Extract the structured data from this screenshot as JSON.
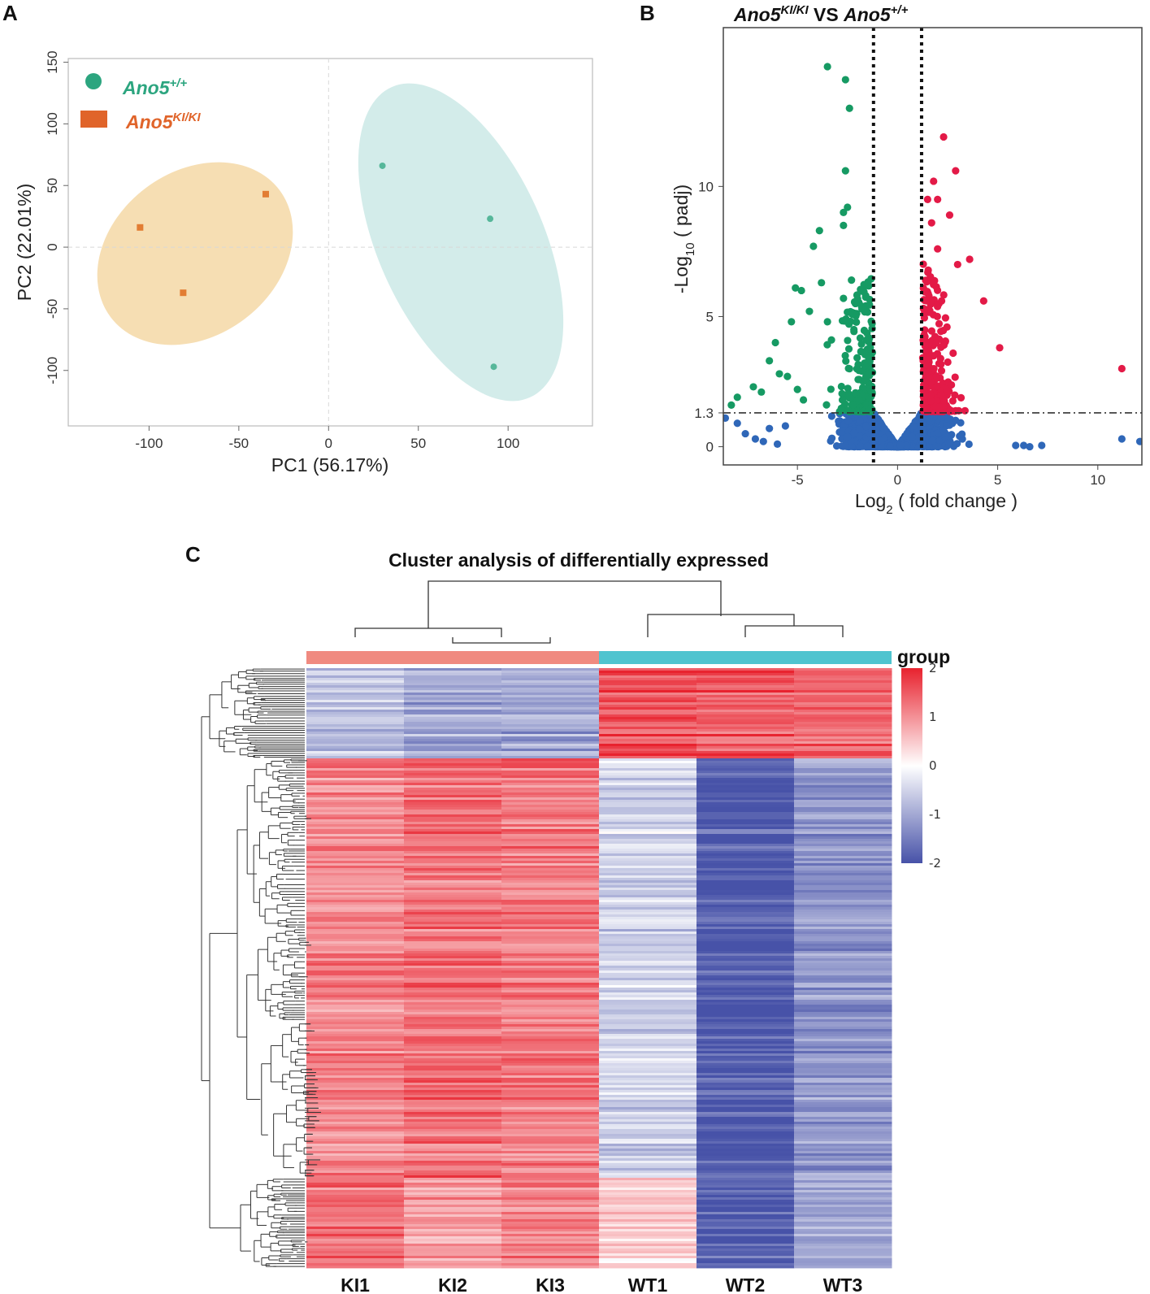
{
  "panels": {
    "a": "A",
    "b": "B",
    "c": "C"
  },
  "chart_data": [
    {
      "type": "scatter",
      "panel": "A",
      "xlabel": "PC1 (56.17%)",
      "ylabel": "PC2 (22.01%)",
      "xlim": [
        -145,
        147
      ],
      "ylim": [
        -145,
        153
      ],
      "xticks": [
        -100,
        -50,
        0,
        50,
        100
      ],
      "yticks": [
        -100,
        -50,
        0,
        50,
        100,
        150
      ],
      "legend_position": "top-left",
      "series": [
        {
          "name_base": "Ano5",
          "name_sup": "+/+",
          "color": "#2ca57f",
          "marker": "circle",
          "ellipse_color": "#d3ecea",
          "points": [
            [
              30,
              66
            ],
            [
              90,
              23
            ],
            [
              92,
              -97
            ]
          ]
        },
        {
          "name_base": "Ano5",
          "name_sup": "KI/KI",
          "color": "#e27d33",
          "marker": "square",
          "legend_color": "#e0642a",
          "ellipse_color": "#f6deb3",
          "points": [
            [
              -35,
              43
            ],
            [
              -105,
              16
            ],
            [
              -81,
              -37
            ]
          ]
        }
      ]
    },
    {
      "type": "scatter",
      "panel": "B",
      "title": {
        "part1": "Ano5",
        "sup1": "KI/KI",
        "vs": " VS ",
        "part2": "Ano5",
        "sup2": "+/+"
      },
      "xlabel": {
        "pre": "Log",
        "sub": "2",
        "post": " ( fold change )"
      },
      "ylabel": {
        "pre": "-Log",
        "sub": "10",
        "post": " ( padj)"
      },
      "xlim": [
        -8.7,
        12.2
      ],
      "ylim": [
        -0.7,
        16.1
      ],
      "xticks": [
        -5,
        0,
        5,
        10
      ],
      "yticks": [
        0,
        1.3,
        5,
        10
      ],
      "ytick_labels": [
        "0",
        "1.3",
        "5",
        "10"
      ],
      "thresholds": {
        "log2fc": [
          -1.2,
          1.2
        ],
        "padj_line": 1.3
      },
      "colors": {
        "up": "#e31a47",
        "down": "#169a63",
        "not_significant": "#2f67b8"
      },
      "down_points": [
        [
          -3.5,
          14.6
        ],
        [
          -2.6,
          14.1
        ],
        [
          -2.4,
          13.0
        ],
        [
          -2.6,
          10.6
        ],
        [
          -2.5,
          9.2
        ],
        [
          -2.7,
          9.0
        ],
        [
          -2.7,
          8.5
        ],
        [
          -3.9,
          8.3
        ],
        [
          -4.2,
          7.7
        ],
        [
          -5.1,
          6.1
        ],
        [
          -4.8,
          6.0
        ],
        [
          -3.8,
          6.3
        ],
        [
          -2.3,
          6.4
        ],
        [
          -2.7,
          5.7
        ],
        [
          -2.1,
          5.5
        ],
        [
          -4.4,
          5.2
        ],
        [
          -5.3,
          4.8
        ],
        [
          -3.5,
          4.8
        ],
        [
          -6.1,
          4.0
        ],
        [
          -3.3,
          4.1
        ],
        [
          -6.4,
          3.3
        ],
        [
          -5.9,
          2.8
        ],
        [
          -5.5,
          2.7
        ],
        [
          -7.2,
          2.3
        ],
        [
          -6.8,
          2.1
        ],
        [
          -8.0,
          1.9
        ],
        [
          -8.3,
          1.6
        ],
        [
          -5.0,
          2.2
        ],
        [
          -4.7,
          1.8
        ]
      ],
      "up_points": [
        [
          2.3,
          11.9
        ],
        [
          2.9,
          10.6
        ],
        [
          1.8,
          10.2
        ],
        [
          1.5,
          9.5
        ],
        [
          2.0,
          9.5
        ],
        [
          1.7,
          8.6
        ],
        [
          2.6,
          8.9
        ],
        [
          3.6,
          7.2
        ],
        [
          2.0,
          7.6
        ],
        [
          3.0,
          7.0
        ],
        [
          4.3,
          5.6
        ],
        [
          5.1,
          3.8
        ],
        [
          11.2,
          3.0
        ],
        [
          2.2,
          5.6
        ]
      ],
      "ns_points": [
        [
          -8.6,
          1.1
        ],
        [
          -8.0,
          0.9
        ],
        [
          -7.6,
          0.5
        ],
        [
          -7.1,
          0.3
        ],
        [
          -6.7,
          0.2
        ],
        [
          -6.4,
          0.7
        ],
        [
          -6.0,
          0.1
        ],
        [
          -5.6,
          0.8
        ],
        [
          11.2,
          0.3
        ],
        [
          12.1,
          0.2
        ],
        [
          6.3,
          0.05
        ],
        [
          6.6,
          0.0
        ],
        [
          7.2,
          0.05
        ],
        [
          5.9,
          0.05
        ]
      ],
      "dense_counts": {
        "ns": 2200,
        "down": 210,
        "up": 230
      }
    },
    {
      "type": "heatmap",
      "panel": "C",
      "title": "Cluster analysis of differentially expressed",
      "columns": [
        "KI1",
        "KI2",
        "KI3",
        "WT1",
        "WT2",
        "WT3"
      ],
      "groups": [
        {
          "name": "KI",
          "color": "#f08a80"
        },
        {
          "name": "WT",
          "color": "#4fc4cf"
        }
      ],
      "legend_title": "group",
      "colorbar_ticks": [
        2,
        1,
        0,
        -1,
        -2
      ],
      "colorbar_range": [
        -2,
        2
      ],
      "colors": {
        "low": "#4752a8",
        "mid": "#ffffff",
        "high": "#e8222e"
      },
      "row_blocks": [
        {
          "label": "top cluster",
          "fraction": 0.15,
          "values": [
            -0.7,
            -1.0,
            -1.0,
            1.6,
            1.5,
            1.4
          ]
        },
        {
          "label": "main cluster",
          "fraction": 0.7,
          "values": [
            1.1,
            1.3,
            1.2,
            -0.5,
            -1.9,
            -1.2
          ]
        },
        {
          "label": "bottom cluster",
          "fraction": 0.15,
          "values": [
            1.3,
            0.9,
            1.2,
            0.5,
            -1.8,
            -1.0
          ]
        }
      ]
    }
  ]
}
